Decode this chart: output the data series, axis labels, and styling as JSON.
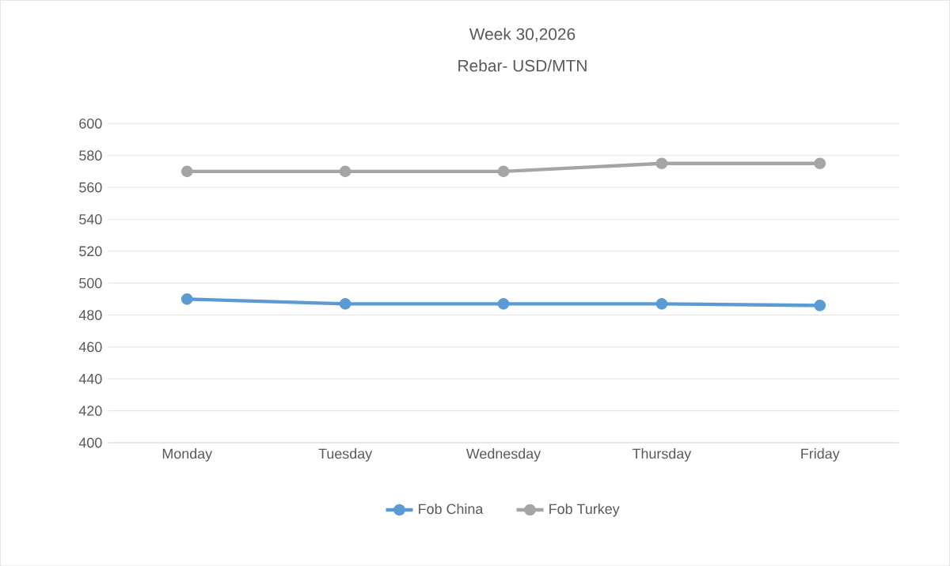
{
  "chart_data": {
    "type": "line",
    "title": "Week 30,2026",
    "subtitle": "Rebar- USD/MTN",
    "categories": [
      "Monday",
      "Tuesday",
      "Wednesday",
      "Thursday",
      "Friday"
    ],
    "series": [
      {
        "name": "Fob China",
        "color": "#5b9bd5",
        "values": [
          490,
          487,
          487,
          487,
          486
        ]
      },
      {
        "name": "Fob Turkey",
        "color": "#a5a5a5",
        "values": [
          570,
          570,
          570,
          575,
          575
        ]
      }
    ],
    "ylim": [
      400,
      600
    ],
    "yticks": [
      400,
      420,
      440,
      460,
      480,
      500,
      520,
      540,
      560,
      580,
      600
    ],
    "grid": "y",
    "legend": "bottom",
    "marker": "circle",
    "line_style": "solid"
  }
}
